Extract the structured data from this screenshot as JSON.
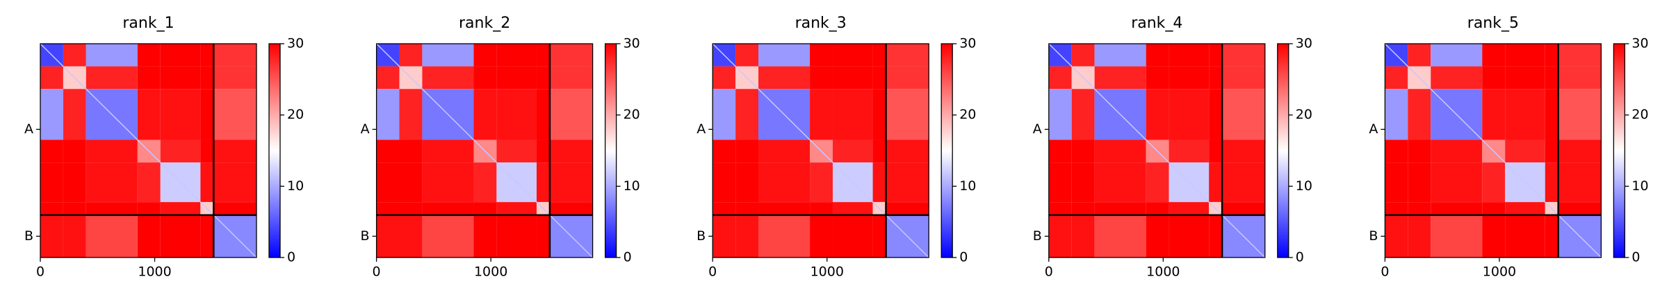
{
  "chart_data": [
    {
      "type": "heatmap",
      "title": "rank_1",
      "bins": [
        0,
        200,
        400,
        850,
        1050,
        1400,
        1515,
        1890
      ],
      "values": [
        [
          4,
          28,
          9,
          30,
          30,
          30,
          27
        ],
        [
          28,
          18,
          28,
          30,
          30,
          30,
          27
        ],
        [
          9,
          28,
          7,
          29,
          29,
          30,
          25
        ],
        [
          30,
          30,
          29,
          22,
          28,
          30,
          29
        ],
        [
          30,
          30,
          29,
          28,
          12,
          29,
          29
        ],
        [
          30,
          30,
          30,
          30,
          29,
          18,
          30
        ],
        [
          29,
          29,
          26,
          30,
          30,
          30,
          8
        ]
      ],
      "xlim": [
        0,
        1890
      ],
      "xticks": [
        0,
        1000
      ],
      "ylim": [
        1890,
        0
      ],
      "yticks": [
        {
          "value": 757,
          "label": "A"
        },
        {
          "value": 1702,
          "label": "B"
        }
      ],
      "chain_breaks": [
        1515
      ],
      "clim": [
        0,
        30
      ],
      "cticks": [
        0,
        10,
        20,
        30
      ],
      "colormap": [
        "#0000ff",
        "#ffffff",
        "#ff0000"
      ]
    },
    {
      "type": "heatmap",
      "title": "rank_2",
      "bins": [
        0,
        200,
        400,
        850,
        1050,
        1400,
        1515,
        1890
      ],
      "values": [
        [
          4,
          28,
          9,
          30,
          30,
          30,
          27
        ],
        [
          28,
          18,
          28,
          30,
          30,
          30,
          27
        ],
        [
          9,
          28,
          7,
          29,
          29,
          30,
          25
        ],
        [
          30,
          30,
          29,
          22,
          28,
          30,
          29
        ],
        [
          30,
          30,
          29,
          28,
          12,
          29,
          29
        ],
        [
          30,
          30,
          30,
          30,
          29,
          18,
          30
        ],
        [
          29,
          29,
          26,
          30,
          30,
          30,
          8
        ]
      ],
      "xlim": [
        0,
        1890
      ],
      "xticks": [
        0,
        1000
      ],
      "ylim": [
        1890,
        0
      ],
      "yticks": [
        {
          "value": 757,
          "label": "A"
        },
        {
          "value": 1702,
          "label": "B"
        }
      ],
      "chain_breaks": [
        1515
      ],
      "clim": [
        0,
        30
      ],
      "cticks": [
        0,
        10,
        20,
        30
      ],
      "colormap": [
        "#0000ff",
        "#ffffff",
        "#ff0000"
      ]
    },
    {
      "type": "heatmap",
      "title": "rank_3",
      "bins": [
        0,
        200,
        400,
        850,
        1050,
        1400,
        1515,
        1890
      ],
      "values": [
        [
          4,
          28,
          9,
          30,
          30,
          30,
          27
        ],
        [
          28,
          18,
          28,
          30,
          30,
          30,
          27
        ],
        [
          9,
          28,
          7,
          29,
          29,
          30,
          25
        ],
        [
          30,
          30,
          29,
          22,
          28,
          30,
          29
        ],
        [
          30,
          30,
          29,
          28,
          12,
          29,
          29
        ],
        [
          30,
          30,
          30,
          30,
          29,
          18,
          30
        ],
        [
          29,
          29,
          26,
          30,
          30,
          30,
          8
        ]
      ],
      "xlim": [
        0,
        1890
      ],
      "xticks": [
        0,
        1000
      ],
      "ylim": [
        1890,
        0
      ],
      "yticks": [
        {
          "value": 757,
          "label": "A"
        },
        {
          "value": 1702,
          "label": "B"
        }
      ],
      "chain_breaks": [
        1515
      ],
      "clim": [
        0,
        30
      ],
      "cticks": [
        0,
        10,
        20,
        30
      ],
      "colormap": [
        "#0000ff",
        "#ffffff",
        "#ff0000"
      ]
    },
    {
      "type": "heatmap",
      "title": "rank_4",
      "bins": [
        0,
        200,
        400,
        850,
        1050,
        1400,
        1515,
        1890
      ],
      "values": [
        [
          4,
          28,
          9,
          30,
          30,
          30,
          27
        ],
        [
          28,
          18,
          28,
          30,
          30,
          30,
          27
        ],
        [
          9,
          28,
          7,
          29,
          29,
          30,
          25
        ],
        [
          30,
          30,
          29,
          22,
          28,
          30,
          29
        ],
        [
          30,
          30,
          29,
          28,
          12,
          29,
          29
        ],
        [
          30,
          30,
          30,
          30,
          29,
          18,
          30
        ],
        [
          29,
          29,
          26,
          30,
          30,
          30,
          8
        ]
      ],
      "xlim": [
        0,
        1890
      ],
      "xticks": [
        0,
        1000
      ],
      "ylim": [
        1890,
        0
      ],
      "yticks": [
        {
          "value": 757,
          "label": "A"
        },
        {
          "value": 1702,
          "label": "B"
        }
      ],
      "chain_breaks": [
        1515
      ],
      "clim": [
        0,
        30
      ],
      "cticks": [
        0,
        10,
        20,
        30
      ],
      "colormap": [
        "#0000ff",
        "#ffffff",
        "#ff0000"
      ]
    },
    {
      "type": "heatmap",
      "title": "rank_5",
      "bins": [
        0,
        200,
        400,
        850,
        1050,
        1400,
        1515,
        1890
      ],
      "values": [
        [
          4,
          28,
          9,
          30,
          30,
          30,
          27
        ],
        [
          28,
          18,
          28,
          30,
          30,
          30,
          27
        ],
        [
          9,
          28,
          7,
          29,
          29,
          30,
          25
        ],
        [
          30,
          30,
          29,
          22,
          28,
          30,
          29
        ],
        [
          30,
          30,
          29,
          28,
          12,
          29,
          29
        ],
        [
          30,
          30,
          30,
          30,
          29,
          18,
          30
        ],
        [
          29,
          29,
          26,
          30,
          30,
          30,
          8
        ]
      ],
      "xlim": [
        0,
        1890
      ],
      "xticks": [
        0,
        1000
      ],
      "ylim": [
        1890,
        0
      ],
      "yticks": [
        {
          "value": 757,
          "label": "A"
        },
        {
          "value": 1702,
          "label": "B"
        }
      ],
      "chain_breaks": [
        1515
      ],
      "clim": [
        0,
        30
      ],
      "cticks": [
        0,
        10,
        20,
        30
      ],
      "colormap": [
        "#0000ff",
        "#ffffff",
        "#ff0000"
      ]
    }
  ]
}
